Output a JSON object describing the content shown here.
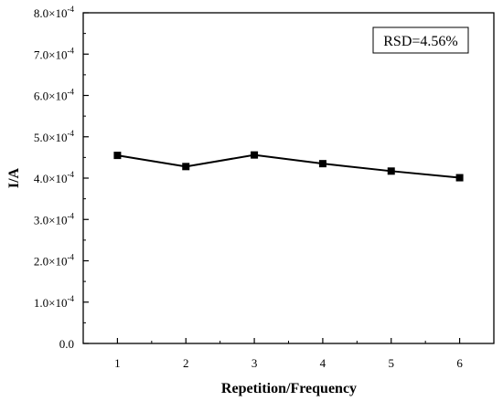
{
  "chart_data": {
    "type": "line",
    "x": [
      1,
      2,
      3,
      4,
      5,
      6
    ],
    "series": [
      {
        "values": [
          0.000455,
          0.000428,
          0.000456,
          0.000435,
          0.000417,
          0.000401
        ]
      }
    ],
    "xlabel": "Repetition/Frequency",
    "ylabel": "I/A",
    "xlim": [
      0.5,
      6.5
    ],
    "ylim": [
      0,
      0.0008
    ],
    "xticks": [
      "1",
      "2",
      "3",
      "4",
      "5",
      "6"
    ],
    "yticks": [
      {
        "mant": "0.0",
        "exp": ""
      },
      {
        "mant": "1.0×10",
        "exp": "-4"
      },
      {
        "mant": "2.0×10",
        "exp": "-4"
      },
      {
        "mant": "3.0×10",
        "exp": "-4"
      },
      {
        "mant": "4.0×10",
        "exp": "-4"
      },
      {
        "mant": "5.0×10",
        "exp": "-4"
      },
      {
        "mant": "6.0×10",
        "exp": "-4"
      },
      {
        "mant": "7.0×10",
        "exp": "-4"
      },
      {
        "mant": "8.0×10",
        "exp": "-4"
      }
    ],
    "annotation": "RSD=4.56%",
    "marker": "square",
    "color": "#000000",
    "grid": false
  }
}
